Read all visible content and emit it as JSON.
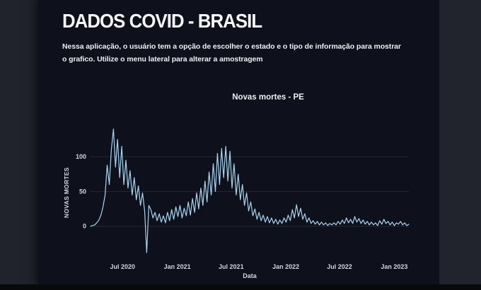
{
  "page": {
    "title": "DADOS COVID - BRASIL",
    "description": "Nessa aplicação, o usuário tem a opção de escolher o estado e o tipo de informação para mostrar o grafico. Utilize o menu lateral para alterar a amostragem"
  },
  "colors": {
    "content_background": "#0e111b",
    "side_panel": "#20232b",
    "line": "#a8d3f2",
    "grid": "#262a34",
    "text_primary": "#f7f8fa",
    "text_axis": "#d0d4db"
  },
  "chart_data": {
    "type": "line",
    "title": "Novas mortes - PE",
    "xlabel": "Data",
    "ylabel": "NOVAS MORTES",
    "legend": "none",
    "grid": true,
    "line_color": "#a8d3f2",
    "x_start": "2020-03-15",
    "x_interval": "weekly",
    "ylim": [
      -45,
      155
    ],
    "y_ticks": [
      0,
      50,
      100
    ],
    "x_ticks": [
      {
        "label": "Jul 2020",
        "index": 15.4
      },
      {
        "label": "Jan 2021",
        "index": 41.7
      },
      {
        "label": "Jul 2021",
        "index": 67.6
      },
      {
        "label": "Jan 2022",
        "index": 93.9
      },
      {
        "label": "Jul 2022",
        "index": 119.7
      },
      {
        "label": "Jan 2023",
        "index": 146.0
      }
    ],
    "values": [
      0,
      1,
      2,
      5,
      9,
      16,
      28,
      45,
      88,
      60,
      110,
      140,
      85,
      125,
      70,
      115,
      60,
      95,
      55,
      80,
      45,
      70,
      38,
      58,
      30,
      48,
      22,
      -38,
      30,
      24,
      12,
      20,
      8,
      18,
      6,
      15,
      5,
      20,
      8,
      24,
      10,
      28,
      14,
      30,
      12,
      26,
      15,
      35,
      16,
      40,
      20,
      48,
      25,
      55,
      30,
      65,
      35,
      78,
      45,
      90,
      50,
      105,
      60,
      112,
      70,
      115,
      65,
      108,
      55,
      90,
      45,
      75,
      38,
      60,
      30,
      48,
      22,
      35,
      15,
      25,
      10,
      20,
      8,
      16,
      6,
      14,
      5,
      12,
      4,
      10,
      3,
      9,
      4,
      12,
      6,
      16,
      8,
      24,
      12,
      31,
      14,
      26,
      10,
      18,
      6,
      12,
      4,
      8,
      3,
      7,
      2,
      6,
      2,
      5,
      1,
      4,
      2,
      5,
      2,
      7,
      3,
      9,
      4,
      12,
      5,
      10,
      4,
      14,
      6,
      11,
      4,
      9,
      3,
      7,
      2,
      6,
      2,
      5,
      1,
      8,
      3,
      10,
      4,
      7,
      2,
      6,
      1,
      5,
      3,
      7,
      2,
      5,
      1,
      3
    ]
  }
}
